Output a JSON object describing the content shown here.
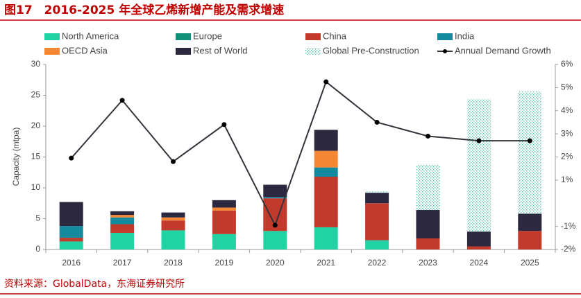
{
  "header": {
    "title": "图17　2016-2025 年全球乙烯新增产能及需求增速"
  },
  "chart_data": {
    "type": "bar-line",
    "y_label": "Capacity (mtpa)",
    "categories": [
      "2016",
      "2017",
      "2018",
      "2019",
      "2020",
      "2021",
      "2022",
      "2023",
      "2024",
      "2025"
    ],
    "series": [
      {
        "name": "North America",
        "color": "#1fd4a2",
        "values": [
          1.3,
          2.7,
          3.1,
          2.5,
          3.0,
          3.6,
          1.5,
          0,
          0,
          0
        ]
      },
      {
        "name": "Europe",
        "color": "#12917a",
        "values": [
          0,
          0,
          0,
          0,
          0,
          0,
          0,
          0,
          0,
          0
        ]
      },
      {
        "name": "China",
        "color": "#c23a2b",
        "values": [
          0.6,
          1.4,
          1.6,
          3.8,
          5.3,
          8.2,
          6.0,
          1.8,
          0.5,
          3.0
        ]
      },
      {
        "name": "India",
        "color": "#138a9e",
        "values": [
          1.9,
          1.1,
          0,
          0,
          0.2,
          1.5,
          0,
          0,
          0,
          0
        ]
      },
      {
        "name": "OECD Asia",
        "color": "#f58634",
        "values": [
          0,
          0.4,
          0.5,
          0.5,
          0,
          2.7,
          0,
          0,
          0,
          0
        ]
      },
      {
        "name": "Rest of World",
        "color": "#2b2840",
        "values": [
          3.9,
          0.6,
          0.8,
          1.2,
          2.0,
          3.4,
          1.7,
          4.6,
          2.4,
          2.8
        ]
      },
      {
        "name": "Global Pre-Construction",
        "color": "#4fbfa8",
        "pattern": "dots",
        "values": [
          0,
          0,
          0,
          0,
          0,
          0,
          0.2,
          7.3,
          21.5,
          19.8
        ]
      },
      {
        "name": "Annual Demand Growth",
        "color": "#33333b",
        "type": "line",
        "axis": "y2",
        "values": [
          1.95,
          4.45,
          1.8,
          3.4,
          -0.95,
          5.25,
          3.5,
          2.9,
          2.7,
          2.7
        ]
      }
    ],
    "ylim": [
      0,
      30
    ],
    "yticks": [
      0,
      5,
      10,
      15,
      20,
      25,
      30
    ],
    "y2lim": [
      -2,
      6
    ],
    "y2ticks": [
      {
        "value": -2,
        "label": "-2%"
      },
      {
        "value": -1,
        "label": "-1%"
      },
      {
        "value": 1,
        "label": "1%"
      },
      {
        "value": 2,
        "label": "2%"
      },
      {
        "value": 3,
        "label": "3%"
      },
      {
        "value": 4,
        "label": "4%"
      },
      {
        "value": 5,
        "label": "5%"
      },
      {
        "value": 6,
        "label": "6%"
      }
    ]
  },
  "footer": {
    "source": "资料来源：GlobalData，东海证券研究所"
  }
}
